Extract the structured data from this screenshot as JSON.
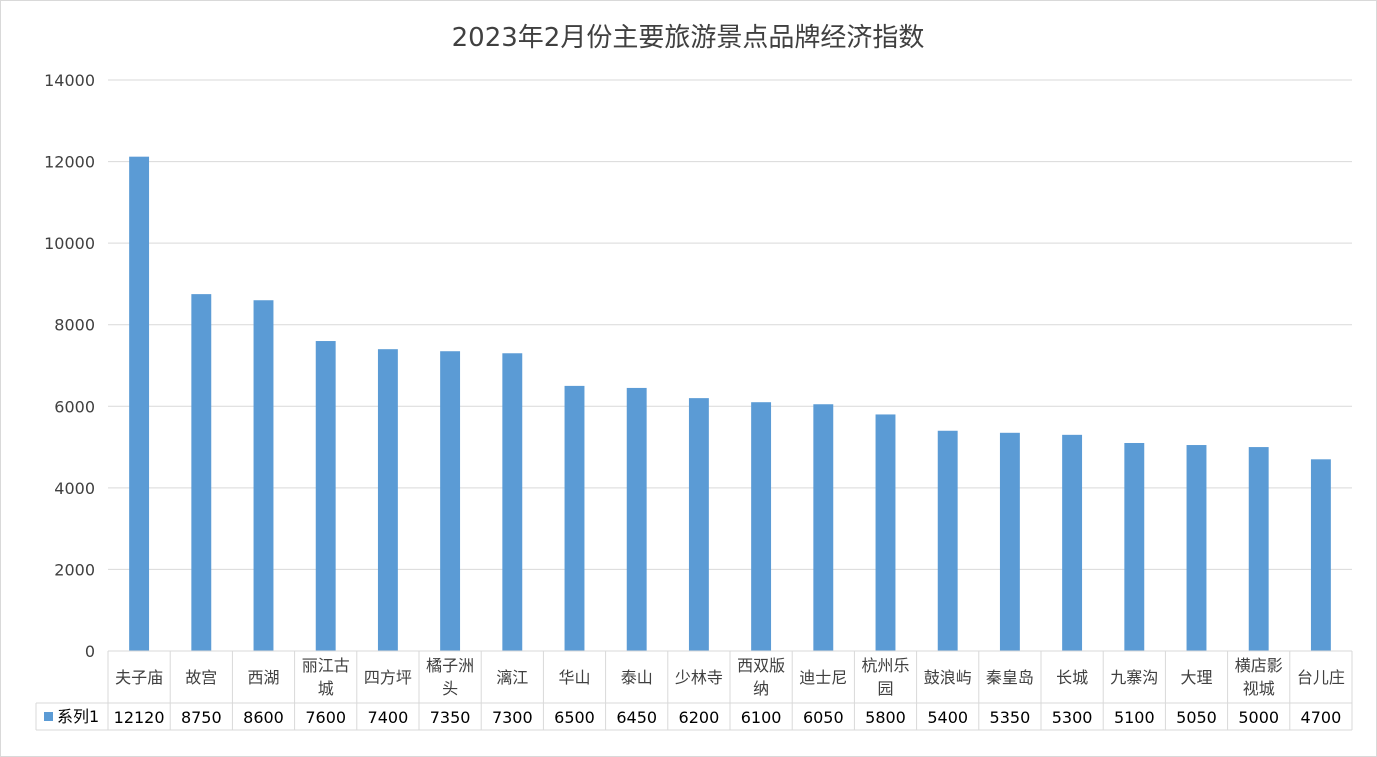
{
  "chart_data": {
    "type": "bar",
    "title": "2023年2月份主要旅游景点品牌经济指数",
    "xlabel": "",
    "ylabel": "",
    "ylim": [
      0,
      14000
    ],
    "yticks": [
      0,
      2000,
      4000,
      6000,
      8000,
      10000,
      12000,
      14000
    ],
    "grid": true,
    "legend_position": "data-table-left",
    "categories": [
      [
        "夫子庙"
      ],
      [
        "故宫"
      ],
      [
        "西湖"
      ],
      [
        "丽江古",
        "城"
      ],
      [
        "四方坪"
      ],
      [
        "橘子洲",
        "头"
      ],
      [
        "漓江"
      ],
      [
        "华山"
      ],
      [
        "泰山"
      ],
      [
        "少林寺"
      ],
      [
        "西双版",
        "纳"
      ],
      [
        "迪士尼"
      ],
      [
        "杭州乐",
        "园"
      ],
      [
        "鼓浪屿"
      ],
      [
        "秦皇岛"
      ],
      [
        "长城"
      ],
      [
        "九寨沟"
      ],
      [
        "大理"
      ],
      [
        "横店影",
        "视城"
      ],
      [
        "台儿庄"
      ]
    ],
    "series": [
      {
        "name": "系列1",
        "color": "#5B9BD5",
        "values": [
          12120,
          8750,
          8600,
          7600,
          7400,
          7350,
          7300,
          6500,
          6450,
          6200,
          6100,
          6050,
          5800,
          5400,
          5350,
          5300,
          5100,
          5050,
          5000,
          4700
        ]
      }
    ]
  }
}
